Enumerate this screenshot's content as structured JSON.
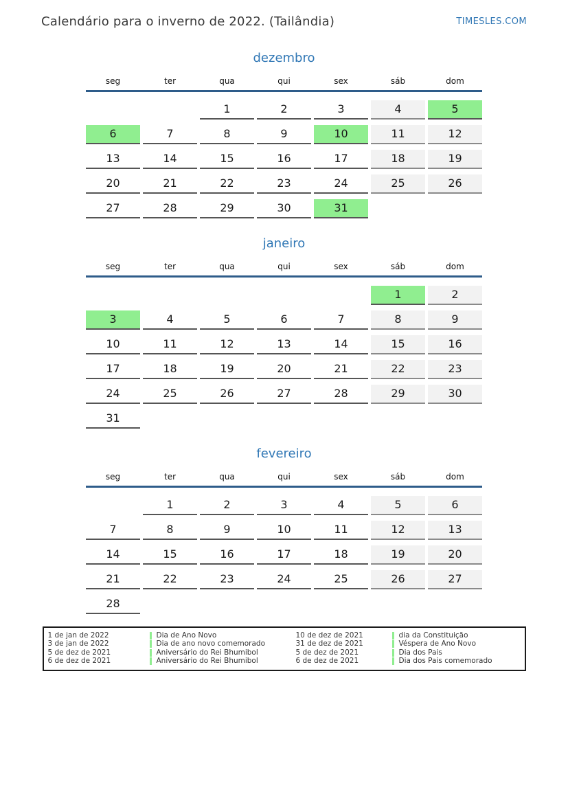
{
  "header": {
    "title": "Calendário para o inverno de 2022. (Tailândia)",
    "site_link": "TIMESLES.COM"
  },
  "calendar": {
    "weekdays": [
      "seg",
      "ter",
      "qua",
      "qui",
      "sex",
      "sáb",
      "dom"
    ],
    "months": [
      {
        "name": "dezembro",
        "weeks": [
          [
            null,
            null,
            {
              "d": 1,
              "k": "day"
            },
            {
              "d": 2,
              "k": "day"
            },
            {
              "d": 3,
              "k": "day"
            },
            {
              "d": 4,
              "k": "weekend"
            },
            {
              "d": 5,
              "k": "holiday"
            }
          ],
          [
            {
              "d": 6,
              "k": "holiday"
            },
            {
              "d": 7,
              "k": "day"
            },
            {
              "d": 8,
              "k": "day"
            },
            {
              "d": 9,
              "k": "day"
            },
            {
              "d": 10,
              "k": "holiday"
            },
            {
              "d": 11,
              "k": "weekend"
            },
            {
              "d": 12,
              "k": "weekend"
            }
          ],
          [
            {
              "d": 13,
              "k": "day"
            },
            {
              "d": 14,
              "k": "day"
            },
            {
              "d": 15,
              "k": "day"
            },
            {
              "d": 16,
              "k": "day"
            },
            {
              "d": 17,
              "k": "day"
            },
            {
              "d": 18,
              "k": "weekend"
            },
            {
              "d": 19,
              "k": "weekend"
            }
          ],
          [
            {
              "d": 20,
              "k": "day"
            },
            {
              "d": 21,
              "k": "day"
            },
            {
              "d": 22,
              "k": "day"
            },
            {
              "d": 23,
              "k": "day"
            },
            {
              "d": 24,
              "k": "day"
            },
            {
              "d": 25,
              "k": "weekend"
            },
            {
              "d": 26,
              "k": "weekend"
            }
          ],
          [
            {
              "d": 27,
              "k": "day"
            },
            {
              "d": 28,
              "k": "day"
            },
            {
              "d": 29,
              "k": "day"
            },
            {
              "d": 30,
              "k": "day"
            },
            {
              "d": 31,
              "k": "holiday"
            },
            null,
            null
          ]
        ]
      },
      {
        "name": "janeiro",
        "weeks": [
          [
            null,
            null,
            null,
            null,
            null,
            {
              "d": 1,
              "k": "holiday"
            },
            {
              "d": 2,
              "k": "weekend"
            }
          ],
          [
            {
              "d": 3,
              "k": "holiday"
            },
            {
              "d": 4,
              "k": "day"
            },
            {
              "d": 5,
              "k": "day"
            },
            {
              "d": 6,
              "k": "day"
            },
            {
              "d": 7,
              "k": "day"
            },
            {
              "d": 8,
              "k": "weekend"
            },
            {
              "d": 9,
              "k": "weekend"
            }
          ],
          [
            {
              "d": 10,
              "k": "day"
            },
            {
              "d": 11,
              "k": "day"
            },
            {
              "d": 12,
              "k": "day"
            },
            {
              "d": 13,
              "k": "day"
            },
            {
              "d": 14,
              "k": "day"
            },
            {
              "d": 15,
              "k": "weekend"
            },
            {
              "d": 16,
              "k": "weekend"
            }
          ],
          [
            {
              "d": 17,
              "k": "day"
            },
            {
              "d": 18,
              "k": "day"
            },
            {
              "d": 19,
              "k": "day"
            },
            {
              "d": 20,
              "k": "day"
            },
            {
              "d": 21,
              "k": "day"
            },
            {
              "d": 22,
              "k": "weekend"
            },
            {
              "d": 23,
              "k": "weekend"
            }
          ],
          [
            {
              "d": 24,
              "k": "day"
            },
            {
              "d": 25,
              "k": "day"
            },
            {
              "d": 26,
              "k": "day"
            },
            {
              "d": 27,
              "k": "day"
            },
            {
              "d": 28,
              "k": "day"
            },
            {
              "d": 29,
              "k": "weekend"
            },
            {
              "d": 30,
              "k": "weekend"
            }
          ],
          [
            {
              "d": 31,
              "k": "day"
            },
            null,
            null,
            null,
            null,
            null,
            null
          ]
        ]
      },
      {
        "name": "fevereiro",
        "weeks": [
          [
            null,
            {
              "d": 1,
              "k": "day"
            },
            {
              "d": 2,
              "k": "day"
            },
            {
              "d": 3,
              "k": "day"
            },
            {
              "d": 4,
              "k": "day"
            },
            {
              "d": 5,
              "k": "weekend"
            },
            {
              "d": 6,
              "k": "weekend"
            }
          ],
          [
            {
              "d": 7,
              "k": "day"
            },
            {
              "d": 8,
              "k": "day"
            },
            {
              "d": 9,
              "k": "day"
            },
            {
              "d": 10,
              "k": "day"
            },
            {
              "d": 11,
              "k": "day"
            },
            {
              "d": 12,
              "k": "weekend"
            },
            {
              "d": 13,
              "k": "weekend"
            }
          ],
          [
            {
              "d": 14,
              "k": "day"
            },
            {
              "d": 15,
              "k": "day"
            },
            {
              "d": 16,
              "k": "day"
            },
            {
              "d": 17,
              "k": "day"
            },
            {
              "d": 18,
              "k": "day"
            },
            {
              "d": 19,
              "k": "weekend"
            },
            {
              "d": 20,
              "k": "weekend"
            }
          ],
          [
            {
              "d": 21,
              "k": "day"
            },
            {
              "d": 22,
              "k": "day"
            },
            {
              "d": 23,
              "k": "day"
            },
            {
              "d": 24,
              "k": "day"
            },
            {
              "d": 25,
              "k": "day"
            },
            {
              "d": 26,
              "k": "weekend"
            },
            {
              "d": 27,
              "k": "weekend"
            }
          ],
          [
            {
              "d": 28,
              "k": "day"
            },
            null,
            null,
            null,
            null,
            null,
            null
          ]
        ]
      }
    ]
  },
  "legend": {
    "columns": [
      {
        "entries": [
          {
            "date": "1 de jan de 2022",
            "holiday": "Dia de Ano Novo"
          },
          {
            "date": "3 de jan de 2022",
            "holiday": "Dia de ano novo comemorado"
          },
          {
            "date": "5 de dez de 2021",
            "holiday": "Aniversário do Rei Bhumibol"
          },
          {
            "date": "6 de dez de 2021",
            "holiday": "Aniversário do Rei Bhumibol"
          }
        ]
      },
      {
        "entries": [
          {
            "date": "10 de dez de 2021",
            "holiday": "dia da Constituição"
          },
          {
            "date": "31 de dez de 2021",
            "holiday": "Véspera de Ano Novo"
          },
          {
            "date": "5 de dez de 2021",
            "holiday": "Dia dos Pais"
          },
          {
            "date": "6 de dez de 2021",
            "holiday": "Dia dos Pais comemorado"
          }
        ]
      }
    ]
  },
  "colors": {
    "holiday_green": "#90ee90",
    "weekend_bg": "#f2f2f2",
    "accent_blue": "#3077b5",
    "header_line_blue": "#2e5c8a",
    "cell_border": "#555555"
  }
}
